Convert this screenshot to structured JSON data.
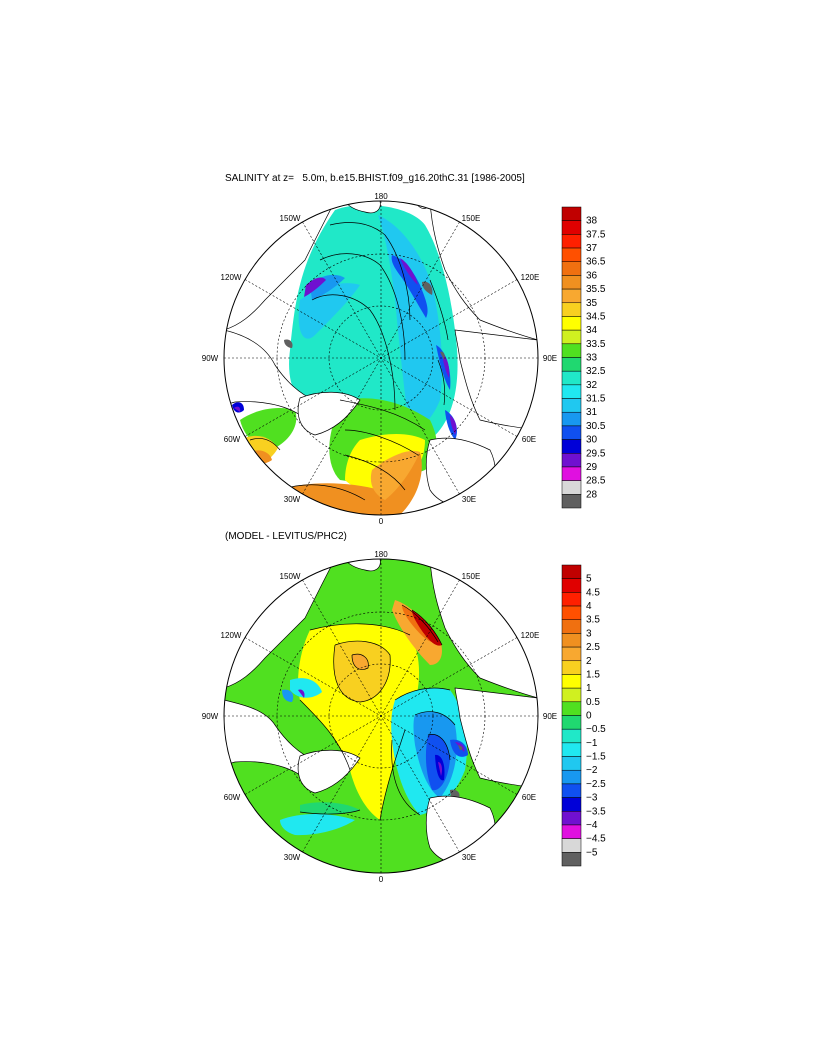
{
  "panels": [
    {
      "title": "SALINITY at z=   5.0m, b.e15.BHIST.f09_g16.20thC.31 [1986-2005]",
      "lon_labels": [
        "180",
        "150E",
        "120E",
        "90E",
        "60E",
        "30E",
        "0",
        "30W",
        "60W",
        "90W",
        "120W",
        "150W"
      ],
      "colorbar": {
        "labels": [
          "38",
          "37.5",
          "37",
          "36.5",
          "36",
          "35.5",
          "35",
          "34.5",
          "34",
          "33.5",
          "33",
          "32.5",
          "32",
          "31.5",
          "31",
          "30.5",
          "30",
          "29.5",
          "29",
          "28.5",
          "28"
        ],
        "colors": [
          "#c00000",
          "#e00000",
          "#ff2000",
          "#ff5000",
          "#f07010",
          "#f09020",
          "#f8a830",
          "#f8d020",
          "#ffff00",
          "#d0f020",
          "#50e020",
          "#20d870",
          "#20e8c8",
          "#20e8f0",
          "#20c8f0",
          "#1898f0",
          "#1050f0",
          "#0000d8",
          "#7010d0",
          "#e010e0",
          "#d8d8d8",
          "#606060"
        ]
      }
    },
    {
      "title": "(MODEL - LEVITUS/PHC2)",
      "lon_labels": [
        "180",
        "150E",
        "120E",
        "90E",
        "60E",
        "30E",
        "0",
        "30W",
        "60W",
        "90W",
        "120W",
        "150W"
      ],
      "colorbar": {
        "labels": [
          "5",
          "4.5",
          "4",
          "3.5",
          "3",
          "2.5",
          "2",
          "1.5",
          "1",
          "0.5",
          "0",
          "−0.5",
          "−1",
          "−1.5",
          "−2",
          "−2.5",
          "−3",
          "−3.5",
          "−4",
          "−4.5",
          "−5"
        ],
        "colors": [
          "#c00000",
          "#e00000",
          "#ff2000",
          "#ff5000",
          "#f07010",
          "#f09020",
          "#f8a830",
          "#f8d020",
          "#ffff00",
          "#d0f020",
          "#50e020",
          "#20d870",
          "#20e8c8",
          "#20e8f0",
          "#20c8f0",
          "#1898f0",
          "#1050f0",
          "#0000d8",
          "#7010d0",
          "#e010e0",
          "#d8d8d8",
          "#606060"
        ]
      }
    }
  ]
}
